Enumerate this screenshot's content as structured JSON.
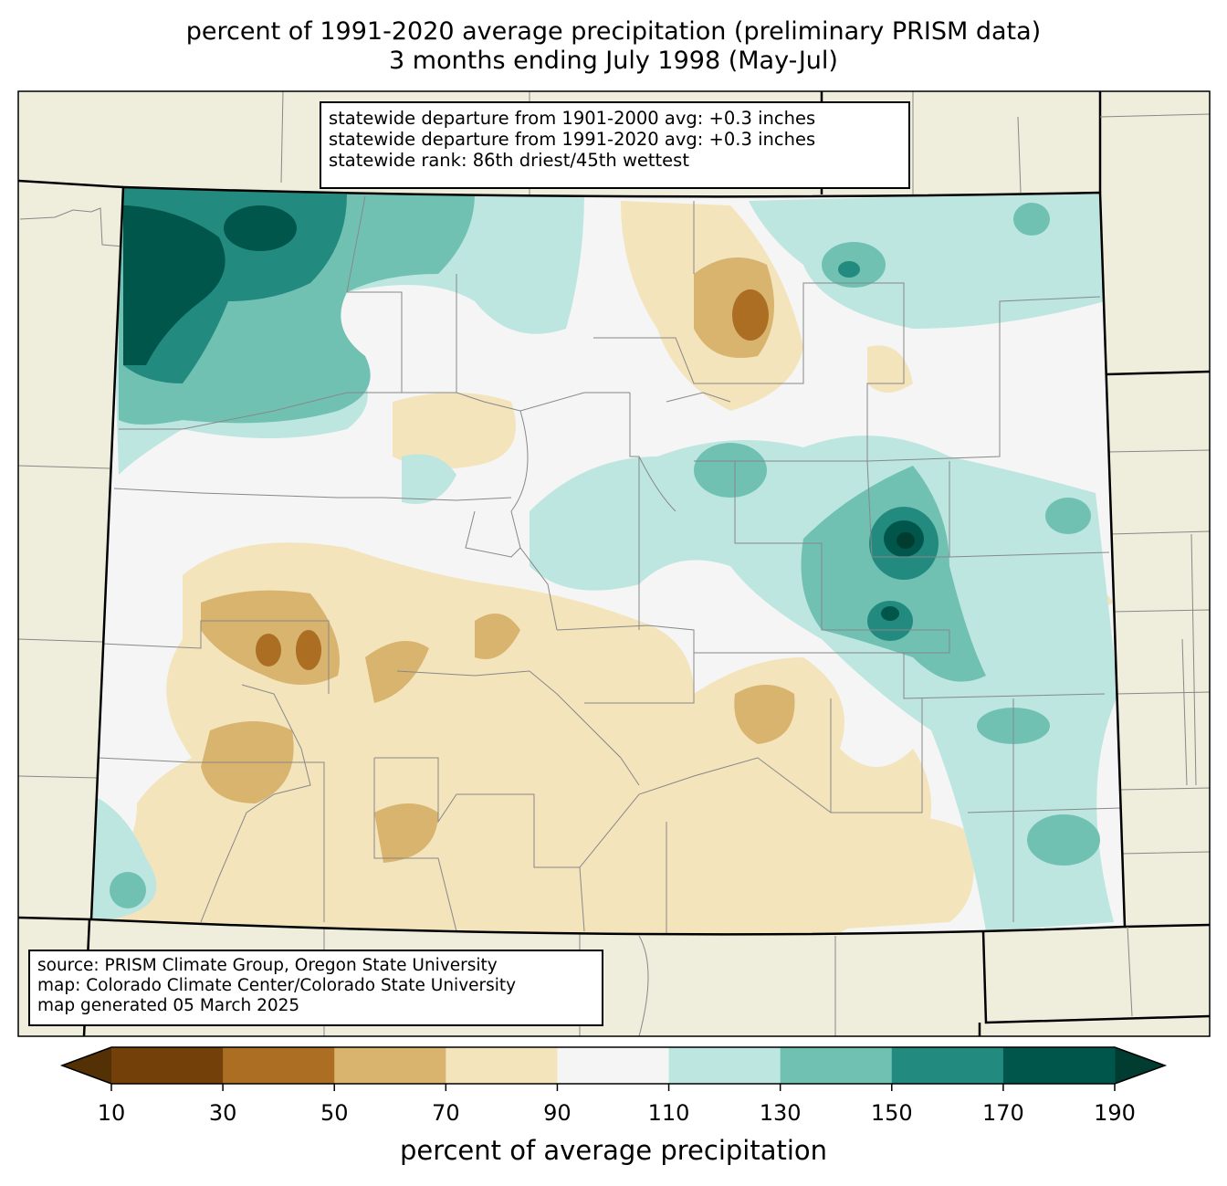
{
  "title": {
    "line1": "percent of 1991-2020 average precipitation (preliminary PRISM data)",
    "line2": "3 months ending July 1998 (May-Jul)"
  },
  "stats_box": {
    "line1": "statewide departure from 1901-2000 avg: +0.3 inches",
    "line2": "statewide departure from 1991-2020 avg: +0.3 inches",
    "line3": "statewide rank: 86th driest/45th wettest"
  },
  "source_box": {
    "line1": "source: PRISM Climate Group, Oregon State University",
    "line2": "map: Colorado Climate Center/Colorado State University",
    "line3": "map generated 05 March 2025"
  },
  "colorbar": {
    "label": "percent of average precipitation",
    "ticks": [
      "10",
      "30",
      "50",
      "70",
      "90",
      "110",
      "130",
      "150",
      "170",
      "190"
    ],
    "under_color": "#543005",
    "over_color": "#003c30",
    "colors": [
      "#734009",
      "#ab6e23",
      "#d9b46e",
      "#f3e4bc",
      "#f4f5f4",
      "#bde6e0",
      "#71c1b3",
      "#238a7f",
      "#01564c"
    ]
  }
}
